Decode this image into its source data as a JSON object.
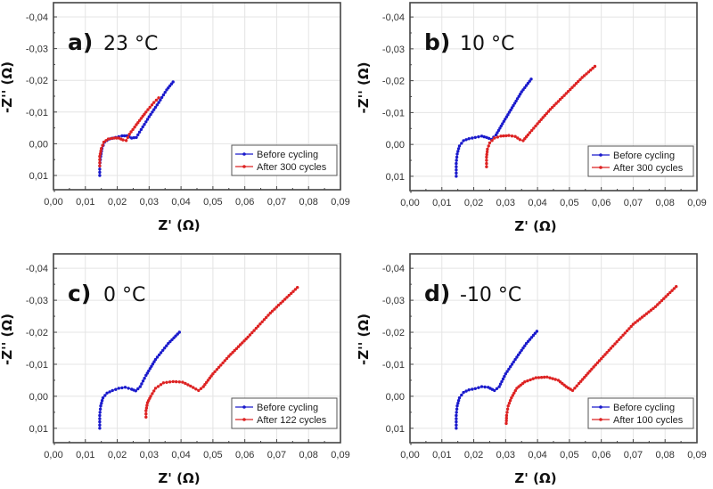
{
  "figure": {
    "description": "Nyquist impedance plots before and after cycling at four temperatures"
  },
  "chart_data": [
    {
      "type": "scatter",
      "panel": "a)",
      "title": "23 °C",
      "xlabel": "Z' (Ω)",
      "ylabel": "-Z'' (Ω)",
      "xlim": [
        0.0,
        0.09
      ],
      "ylim": [
        0.0145,
        -0.0445
      ],
      "y_inverted": true,
      "xticks": [
        "0,00",
        "0,01",
        "0,02",
        "0,03",
        "0,04",
        "0,05",
        "0,06",
        "0,07",
        "0,08",
        "0,09"
      ],
      "yticks": [
        "-0,04",
        "-0,03",
        "-0,02",
        "-0,01",
        "0,00",
        "0,01"
      ],
      "ytick_values": [
        -0.04,
        -0.03,
        -0.02,
        -0.01,
        0.0,
        0.01
      ],
      "grid": true,
      "legend_position": "bottom-right",
      "series": [
        {
          "name": "Before cycling",
          "color": "#1a1acc",
          "points": [
            [
              0.0145,
              0.01
            ],
            [
              0.0145,
              0.007
            ],
            [
              0.0148,
              0.004
            ],
            [
              0.0152,
              0.0015
            ],
            [
              0.016,
              -0.0005
            ],
            [
              0.0175,
              -0.0015
            ],
            [
              0.0195,
              -0.002
            ],
            [
              0.0215,
              -0.0025
            ],
            [
              0.023,
              -0.0025
            ],
            [
              0.0245,
              -0.0018
            ],
            [
              0.026,
              -0.002
            ],
            [
              0.0275,
              -0.0045
            ],
            [
              0.03,
              -0.0085
            ],
            [
              0.033,
              -0.013
            ],
            [
              0.0355,
              -0.017
            ],
            [
              0.0375,
              -0.0195
            ]
          ]
        },
        {
          "name": "After 300 cycles",
          "color": "#dd2222",
          "points": [
            [
              0.0145,
              0.007
            ],
            [
              0.0145,
              0.004
            ],
            [
              0.015,
              0.0015
            ],
            [
              0.0158,
              -0.0005
            ],
            [
              0.0172,
              -0.0015
            ],
            [
              0.019,
              -0.0018
            ],
            [
              0.0205,
              -0.0018
            ],
            [
              0.0218,
              -0.0012
            ],
            [
              0.0228,
              -0.001
            ],
            [
              0.0238,
              -0.003
            ],
            [
              0.026,
              -0.006
            ],
            [
              0.029,
              -0.01
            ],
            [
              0.0315,
              -0.013
            ],
            [
              0.033,
              -0.0145
            ]
          ]
        }
      ]
    },
    {
      "type": "scatter",
      "panel": "b)",
      "title": "10 °C",
      "xlabel": "Z' (Ω)",
      "ylabel": "-Z'' (Ω)",
      "xlim": [
        0.0,
        0.09
      ],
      "ylim": [
        0.0145,
        -0.0445
      ],
      "y_inverted": true,
      "xticks": [
        "0,00",
        "0,01",
        "0,02",
        "0,03",
        "0,04",
        "0,05",
        "0,06",
        "0,07",
        "0,08",
        "0,09"
      ],
      "yticks": [
        "-0,04",
        "-0,03",
        "-0,02",
        "-0,01",
        "0,00",
        "0,01"
      ],
      "ytick_values": [
        -0.04,
        -0.03,
        -0.02,
        -0.01,
        0.0,
        0.01
      ],
      "grid": true,
      "legend_position": "bottom-right",
      "series": [
        {
          "name": "Before cycling",
          "color": "#1a1acc",
          "points": [
            [
              0.0145,
              0.01
            ],
            [
              0.0145,
              0.006
            ],
            [
              0.0148,
              0.003
            ],
            [
              0.0155,
              0.0005
            ],
            [
              0.0168,
              -0.0012
            ],
            [
              0.0185,
              -0.0018
            ],
            [
              0.0205,
              -0.0022
            ],
            [
              0.0225,
              -0.0026
            ],
            [
              0.024,
              -0.0022
            ],
            [
              0.0255,
              -0.0016
            ],
            [
              0.027,
              -0.003
            ],
            [
              0.029,
              -0.0065
            ],
            [
              0.032,
              -0.0115
            ],
            [
              0.035,
              -0.0165
            ],
            [
              0.038,
              -0.0205
            ]
          ]
        },
        {
          "name": "After 300 cycles",
          "color": "#dd2222",
          "points": [
            [
              0.024,
              0.007
            ],
            [
              0.024,
              0.004
            ],
            [
              0.0243,
              0.0015
            ],
            [
              0.025,
              -0.0005
            ],
            [
              0.0265,
              -0.002
            ],
            [
              0.0285,
              -0.0026
            ],
            [
              0.031,
              -0.0028
            ],
            [
              0.033,
              -0.0025
            ],
            [
              0.0345,
              -0.0015
            ],
            [
              0.0355,
              -0.0012
            ],
            [
              0.037,
              -0.003
            ],
            [
              0.04,
              -0.0065
            ],
            [
              0.044,
              -0.011
            ],
            [
              0.049,
              -0.016
            ],
            [
              0.054,
              -0.021
            ],
            [
              0.058,
              -0.0245
            ]
          ]
        }
      ]
    },
    {
      "type": "scatter",
      "panel": "c)",
      "title": "0 °C",
      "xlabel": "Z' (Ω)",
      "ylabel": "-Z'' (Ω)",
      "xlim": [
        0.0,
        0.09
      ],
      "ylim": [
        0.0145,
        -0.0445
      ],
      "y_inverted": true,
      "xticks": [
        "0,00",
        "0,01",
        "0,02",
        "0,03",
        "0,04",
        "0,05",
        "0,06",
        "0,07",
        "0,08",
        "0,09"
      ],
      "yticks": [
        "-0,04",
        "-0,03",
        "-0,02",
        "-0,01",
        "0,00",
        "0,01"
      ],
      "ytick_values": [
        -0.04,
        -0.03,
        -0.02,
        -0.01,
        0.0,
        0.01
      ],
      "grid": true,
      "legend_position": "bottom-right",
      "series": [
        {
          "name": "Before cycling",
          "color": "#1a1acc",
          "points": [
            [
              0.0145,
              0.01
            ],
            [
              0.0145,
              0.006
            ],
            [
              0.0148,
              0.003
            ],
            [
              0.0155,
              0.0005
            ],
            [
              0.0168,
              -0.001
            ],
            [
              0.0185,
              -0.0018
            ],
            [
              0.0205,
              -0.0025
            ],
            [
              0.0225,
              -0.0028
            ],
            [
              0.0245,
              -0.0022
            ],
            [
              0.0258,
              -0.0017
            ],
            [
              0.0272,
              -0.003
            ],
            [
              0.029,
              -0.0065
            ],
            [
              0.032,
              -0.0115
            ],
            [
              0.036,
              -0.0165
            ],
            [
              0.0395,
              -0.02
            ]
          ]
        },
        {
          "name": "After 122 cycles",
          "color": "#dd2222",
          "points": [
            [
              0.029,
              0.0065
            ],
            [
              0.029,
              0.0045
            ],
            [
              0.0295,
              0.002
            ],
            [
              0.0305,
              0.0
            ],
            [
              0.032,
              -0.0025
            ],
            [
              0.0345,
              -0.0042
            ],
            [
              0.0375,
              -0.0046
            ],
            [
              0.0405,
              -0.0044
            ],
            [
              0.043,
              -0.0032
            ],
            [
              0.0455,
              -0.0018
            ],
            [
              0.047,
              -0.003
            ],
            [
              0.05,
              -0.007
            ],
            [
              0.055,
              -0.0125
            ],
            [
              0.061,
              -0.0185
            ],
            [
              0.068,
              -0.026
            ],
            [
              0.0765,
              -0.034
            ]
          ]
        }
      ]
    },
    {
      "type": "scatter",
      "panel": "d)",
      "title": "-10 °C",
      "xlabel": "Z' (Ω)",
      "ylabel": "-Z'' (Ω)",
      "xlim": [
        0.0,
        0.09
      ],
      "ylim": [
        0.0145,
        -0.0445
      ],
      "y_inverted": true,
      "xticks": [
        "0,00",
        "0,01",
        "0,02",
        "0,03",
        "0,04",
        "0,05",
        "0,06",
        "0,07",
        "0,08",
        "0,09"
      ],
      "yticks": [
        "-0,04",
        "-0,03",
        "-0,02",
        "-0,01",
        "0,00",
        "0,01"
      ],
      "ytick_values": [
        -0.04,
        -0.03,
        -0.02,
        -0.01,
        0.0,
        0.01
      ],
      "grid": true,
      "legend_position": "bottom-right",
      "series": [
        {
          "name": "Before cycling",
          "color": "#1a1acc",
          "points": [
            [
              0.0145,
              0.01
            ],
            [
              0.0145,
              0.006
            ],
            [
              0.0148,
              0.003
            ],
            [
              0.0155,
              0.0005
            ],
            [
              0.0168,
              -0.0012
            ],
            [
              0.0185,
              -0.002
            ],
            [
              0.0205,
              -0.0024
            ],
            [
              0.0225,
              -0.003
            ],
            [
              0.0245,
              -0.0028
            ],
            [
              0.0265,
              -0.0018
            ],
            [
              0.028,
              -0.003
            ],
            [
              0.03,
              -0.007
            ],
            [
              0.033,
              -0.0115
            ],
            [
              0.0365,
              -0.0165
            ],
            [
              0.0398,
              -0.0203
            ]
          ]
        },
        {
          "name": "After 100 cycles",
          "color": "#dd2222",
          "points": [
            [
              0.0302,
              0.0085
            ],
            [
              0.0303,
              0.006
            ],
            [
              0.0308,
              0.003
            ],
            [
              0.0318,
              0.0005
            ],
            [
              0.0335,
              -0.0025
            ],
            [
              0.036,
              -0.0045
            ],
            [
              0.0395,
              -0.0058
            ],
            [
              0.043,
              -0.006
            ],
            [
              0.0465,
              -0.005
            ],
            [
              0.049,
              -0.003
            ],
            [
              0.051,
              -0.0018
            ],
            [
              0.053,
              -0.004
            ],
            [
              0.057,
              -0.0085
            ],
            [
              0.063,
              -0.015
            ],
            [
              0.07,
              -0.0225
            ],
            [
              0.077,
              -0.028
            ],
            [
              0.0835,
              -0.0343
            ]
          ]
        }
      ]
    }
  ]
}
